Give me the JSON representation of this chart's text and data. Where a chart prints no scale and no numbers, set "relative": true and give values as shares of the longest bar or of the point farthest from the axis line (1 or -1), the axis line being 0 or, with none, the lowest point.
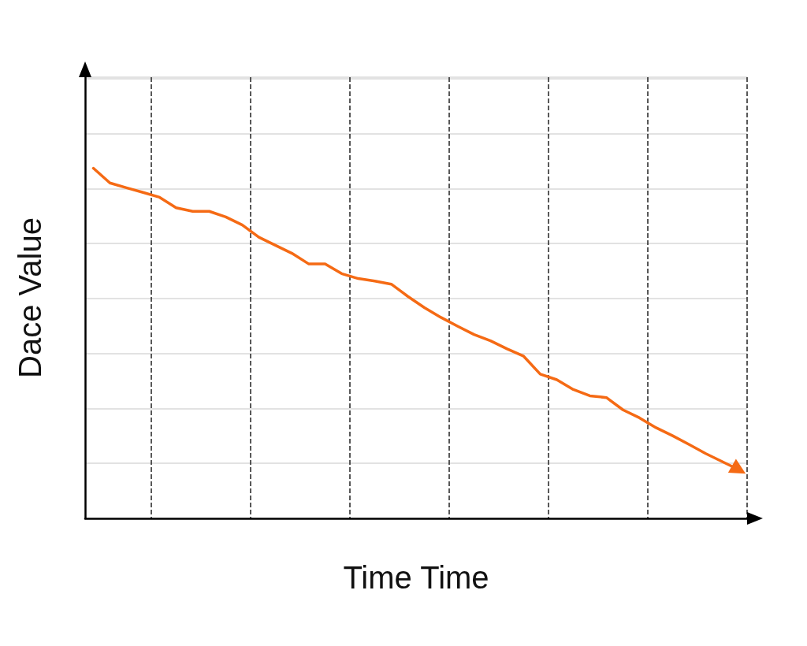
{
  "chart_data": {
    "type": "line",
    "relative": true,
    "xlabel": "Time Time",
    "ylabel": "Dace Value",
    "grid": true,
    "categories": [
      null,
      null,
      null,
      null,
      null,
      null,
      null,
      null,
      null,
      null,
      null,
      null,
      null,
      null,
      null,
      null,
      null,
      null,
      null,
      null,
      null,
      null,
      null,
      null,
      null,
      null,
      null,
      null,
      null,
      null,
      null,
      null,
      null,
      null,
      null,
      null,
      null,
      null,
      null,
      null
    ],
    "series": [
      {
        "color": "#f56a14",
        "values": [
          1.0,
          0.958,
          0.944,
          0.931,
          0.917,
          0.887,
          0.877,
          0.877,
          0.861,
          0.838,
          0.803,
          0.78,
          0.757,
          0.727,
          0.727,
          0.699,
          0.685,
          0.678,
          0.669,
          0.634,
          0.602,
          0.574,
          0.549,
          0.525,
          0.507,
          0.484,
          0.463,
          0.412,
          0.396,
          0.368,
          0.35,
          0.345,
          0.31,
          0.287,
          0.259,
          0.236,
          0.211,
          0.185,
          0.162,
          0.139
        ]
      }
    ]
  }
}
